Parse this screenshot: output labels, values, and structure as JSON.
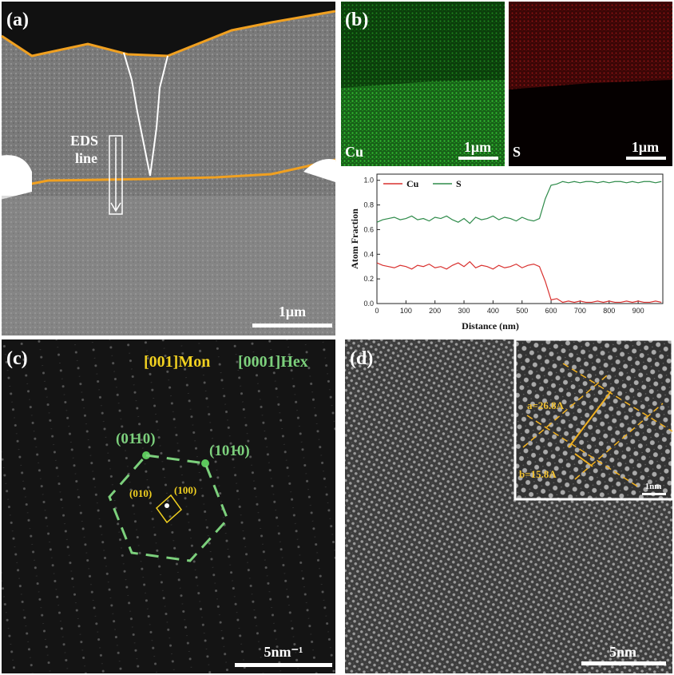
{
  "panels": {
    "a": {
      "label": "(a)",
      "eds_line_1": "EDS",
      "eds_line_2": "line",
      "scale": "1μm"
    },
    "b": {
      "label": "(b)",
      "cu": "Cu",
      "s": "S",
      "cu_scale": "1μm",
      "s_scale": "1μm"
    },
    "c": {
      "label": "(c)",
      "zone_mon": "[001]Mon",
      "zone_hex": "[0001]Hex",
      "hex_spot_1": "(01̵10)",
      "hex_spot_2": "(101̵0)",
      "mon_spot_1": "(010)",
      "mon_spot_2": "(100)",
      "scale": "5nm⁻¹"
    },
    "d": {
      "label": "(d)",
      "a_spacing": "a=26.8A",
      "b_spacing": "b=15.8A",
      "inset_scale": "1nm",
      "scale": "5nm"
    }
  },
  "chart_data": {
    "type": "line",
    "x_label": "Distance (nm)",
    "y_label": "Atom Fraction",
    "x": [
      0,
      20,
      40,
      60,
      80,
      100,
      120,
      140,
      160,
      180,
      200,
      220,
      240,
      260,
      280,
      300,
      320,
      340,
      360,
      380,
      400,
      420,
      440,
      460,
      480,
      500,
      520,
      540,
      560,
      580,
      600,
      620,
      640,
      660,
      680,
      700,
      720,
      740,
      760,
      780,
      800,
      820,
      840,
      860,
      880,
      900,
      920,
      940,
      960,
      980
    ],
    "series": [
      {
        "name": "Cu",
        "color": "#d9312f",
        "values": [
          0.33,
          0.31,
          0.3,
          0.29,
          0.31,
          0.3,
          0.28,
          0.31,
          0.3,
          0.32,
          0.29,
          0.3,
          0.28,
          0.31,
          0.33,
          0.3,
          0.34,
          0.29,
          0.31,
          0.3,
          0.28,
          0.31,
          0.29,
          0.3,
          0.32,
          0.29,
          0.31,
          0.32,
          0.3,
          0.18,
          0.03,
          0.04,
          0.01,
          0.02,
          0.01,
          0.02,
          0.01,
          0.01,
          0.02,
          0.01,
          0.02,
          0.01,
          0.01,
          0.02,
          0.01,
          0.02,
          0.01,
          0.01,
          0.02,
          0.01
        ]
      },
      {
        "name": "S",
        "color": "#2e8b4a",
        "values": [
          0.66,
          0.68,
          0.69,
          0.7,
          0.68,
          0.69,
          0.71,
          0.68,
          0.69,
          0.67,
          0.7,
          0.69,
          0.71,
          0.68,
          0.66,
          0.69,
          0.65,
          0.7,
          0.68,
          0.69,
          0.71,
          0.68,
          0.7,
          0.69,
          0.67,
          0.7,
          0.68,
          0.67,
          0.69,
          0.85,
          0.96,
          0.97,
          0.99,
          0.98,
          0.99,
          0.98,
          0.99,
          0.99,
          0.98,
          0.99,
          0.98,
          0.99,
          0.99,
          0.98,
          0.99,
          0.98,
          0.99,
          0.99,
          0.98,
          0.99
        ]
      }
    ],
    "xlim": [
      0,
      985
    ],
    "ylim": [
      0,
      1.05
    ],
    "xticks": [
      0,
      100,
      200,
      300,
      400,
      500,
      600,
      700,
      800,
      900
    ],
    "yticks": [
      {
        "value": 0,
        "label": "0.0"
      },
      0.2,
      0.4,
      0.6,
      0.8,
      {
        "value": 1,
        "label": "1.0"
      }
    ],
    "legend": "top-left"
  }
}
